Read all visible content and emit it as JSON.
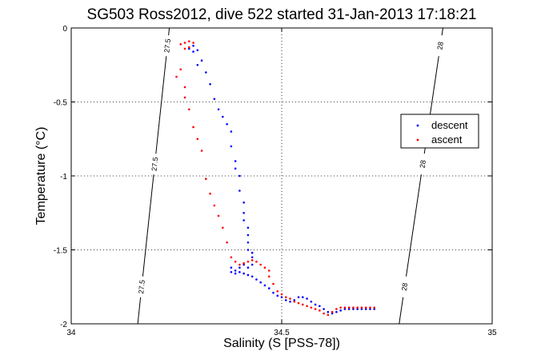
{
  "chart_data": {
    "type": "scatter",
    "title": "SG503 Ross2012, dive 522 started 31-Jan-2013 17:18:21",
    "xlabel": "Salinity (S [PSS-78])",
    "ylabel": "Temperature (°C)",
    "xlim": [
      34,
      35
    ],
    "ylim": [
      -2,
      0
    ],
    "xticks": [
      34,
      34.5,
      35
    ],
    "xtick_labels": [
      "34",
      "34.5",
      "35"
    ],
    "yticks": [
      -2,
      -1.5,
      -1,
      -0.5,
      0
    ],
    "ytick_labels": [
      "-2",
      "-1.5",
      "-1",
      "-0.5",
      "0"
    ],
    "grid": true,
    "legend_position": "right",
    "legend": [
      {
        "name": "descent",
        "color": "#0000ff"
      },
      {
        "name": "ascent",
        "color": "#ff0000"
      }
    ],
    "contours": [
      {
        "label": "27.5",
        "points": [
          [
            34.233,
            0
          ],
          [
            34.158,
            -2
          ]
        ],
        "label_y": [
          -0.12,
          -0.92,
          -1.75
        ]
      },
      {
        "label": "28",
        "points": [
          [
            34.883,
            0
          ],
          [
            34.779,
            -2
          ]
        ],
        "label_y": [
          -0.12,
          -0.92,
          -1.75
        ]
      }
    ],
    "series": [
      {
        "name": "descent",
        "color": "#0000ff",
        "points": [
          [
            34.28,
            -0.14
          ],
          [
            34.29,
            -0.12
          ],
          [
            34.29,
            -0.16
          ],
          [
            34.3,
            -0.15
          ],
          [
            34.3,
            -0.25
          ],
          [
            34.31,
            -0.22
          ],
          [
            34.32,
            -0.3
          ],
          [
            34.33,
            -0.38
          ],
          [
            34.34,
            -0.48
          ],
          [
            34.35,
            -0.55
          ],
          [
            34.36,
            -0.6
          ],
          [
            34.37,
            -0.65
          ],
          [
            34.38,
            -0.7
          ],
          [
            34.38,
            -0.8
          ],
          [
            34.39,
            -0.9
          ],
          [
            34.39,
            -0.95
          ],
          [
            34.4,
            -1.0
          ],
          [
            34.4,
            -1.1
          ],
          [
            34.41,
            -1.18
          ],
          [
            34.41,
            -1.25
          ],
          [
            34.41,
            -1.3
          ],
          [
            34.42,
            -1.35
          ],
          [
            34.42,
            -1.4
          ],
          [
            34.42,
            -1.45
          ],
          [
            34.42,
            -1.5
          ],
          [
            34.43,
            -1.52
          ],
          [
            34.43,
            -1.55
          ],
          [
            34.43,
            -1.6
          ],
          [
            34.42,
            -1.62
          ],
          [
            34.41,
            -1.6
          ],
          [
            34.4,
            -1.62
          ],
          [
            34.39,
            -1.64
          ],
          [
            34.38,
            -1.62
          ],
          [
            34.38,
            -1.65
          ],
          [
            34.39,
            -1.66
          ],
          [
            34.4,
            -1.65
          ],
          [
            34.41,
            -1.66
          ],
          [
            34.42,
            -1.67
          ],
          [
            34.43,
            -1.68
          ],
          [
            34.44,
            -1.7
          ],
          [
            34.45,
            -1.72
          ],
          [
            34.46,
            -1.74
          ],
          [
            34.47,
            -1.76
          ],
          [
            34.48,
            -1.79
          ],
          [
            34.49,
            -1.81
          ],
          [
            34.5,
            -1.82
          ],
          [
            34.51,
            -1.84
          ],
          [
            34.52,
            -1.85
          ],
          [
            34.53,
            -1.84
          ],
          [
            34.54,
            -1.82
          ],
          [
            34.55,
            -1.82
          ],
          [
            34.56,
            -1.83
          ],
          [
            34.57,
            -1.85
          ],
          [
            34.58,
            -1.87
          ],
          [
            34.59,
            -1.88
          ],
          [
            34.6,
            -1.9
          ],
          [
            34.61,
            -1.92
          ],
          [
            34.62,
            -1.93
          ],
          [
            34.63,
            -1.92
          ],
          [
            34.64,
            -1.91
          ],
          [
            34.65,
            -1.9
          ],
          [
            34.66,
            -1.9
          ],
          [
            34.67,
            -1.9
          ],
          [
            34.68,
            -1.9
          ],
          [
            34.69,
            -1.9
          ],
          [
            34.7,
            -1.9
          ],
          [
            34.71,
            -1.9
          ],
          [
            34.72,
            -1.9
          ]
        ]
      },
      {
        "name": "ascent",
        "color": "#ff0000",
        "points": [
          [
            34.26,
            -0.11
          ],
          [
            34.27,
            -0.1
          ],
          [
            34.28,
            -0.13
          ],
          [
            34.29,
            -0.1
          ],
          [
            34.28,
            -0.09
          ],
          [
            34.27,
            -0.14
          ],
          [
            34.26,
            -0.28
          ],
          [
            34.25,
            -0.33
          ],
          [
            34.27,
            -0.4
          ],
          [
            34.27,
            -0.47
          ],
          [
            34.28,
            -0.55
          ],
          [
            34.29,
            -0.67
          ],
          [
            34.3,
            -0.75
          ],
          [
            34.31,
            -0.83
          ],
          [
            34.32,
            -1.02
          ],
          [
            34.33,
            -1.12
          ],
          [
            34.34,
            -1.2
          ],
          [
            34.35,
            -1.27
          ],
          [
            34.36,
            -1.35
          ],
          [
            34.37,
            -1.45
          ],
          [
            34.38,
            -1.55
          ],
          [
            34.39,
            -1.58
          ],
          [
            34.4,
            -1.6
          ],
          [
            34.41,
            -1.59
          ],
          [
            34.42,
            -1.58
          ],
          [
            34.43,
            -1.57
          ],
          [
            34.44,
            -1.58
          ],
          [
            34.45,
            -1.6
          ],
          [
            34.46,
            -1.62
          ],
          [
            34.47,
            -1.64
          ],
          [
            34.47,
            -1.68
          ],
          [
            34.48,
            -1.73
          ],
          [
            34.49,
            -1.78
          ],
          [
            34.5,
            -1.8
          ],
          [
            34.51,
            -1.82
          ],
          [
            34.52,
            -1.83
          ],
          [
            34.53,
            -1.85
          ],
          [
            34.54,
            -1.86
          ],
          [
            34.55,
            -1.87
          ],
          [
            34.56,
            -1.88
          ],
          [
            34.57,
            -1.89
          ],
          [
            34.58,
            -1.9
          ],
          [
            34.59,
            -1.91
          ],
          [
            34.6,
            -1.93
          ],
          [
            34.61,
            -1.94
          ],
          [
            34.62,
            -1.92
          ],
          [
            34.63,
            -1.9
          ],
          [
            34.64,
            -1.89
          ],
          [
            34.65,
            -1.89
          ],
          [
            34.66,
            -1.89
          ],
          [
            34.67,
            -1.89
          ],
          [
            34.68,
            -1.89
          ],
          [
            34.69,
            -1.89
          ],
          [
            34.7,
            -1.89
          ],
          [
            34.71,
            -1.89
          ],
          [
            34.72,
            -1.89
          ]
        ]
      }
    ]
  }
}
